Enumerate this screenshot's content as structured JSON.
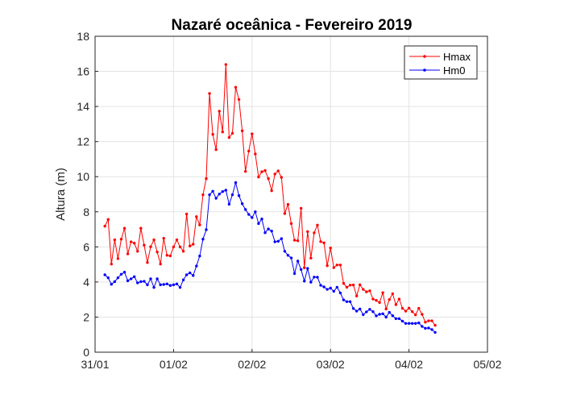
{
  "chart_data": {
    "type": "line",
    "title": "Nazaré oceânica - Fevereiro  2019",
    "xlabel": "",
    "ylabel": "Altura (m)",
    "ylim": [
      0,
      18
    ],
    "yticks": [
      "0",
      "2",
      "4",
      "6",
      "8",
      "10",
      "12",
      "14",
      "16",
      "18"
    ],
    "xticks": [
      "31/01",
      "01/02",
      "02/02",
      "03/02",
      "04/02",
      "05/02"
    ],
    "grid": true,
    "legend": "top-right",
    "x_start": "31/01 03:00",
    "x_step_hours": 1,
    "series": [
      {
        "name": "Hmax",
        "color": "#ff0000",
        "values": [
          7.18,
          7.56,
          5.02,
          6.4,
          5.33,
          6.44,
          7.06,
          5.6,
          6.29,
          6.21,
          5.75,
          7.06,
          6.1,
          5.11,
          6.01,
          6.4,
          5.71,
          5.02,
          6.49,
          5.52,
          5.49,
          6.0,
          6.4,
          6.0,
          5.75,
          7.87,
          6.05,
          6.15,
          7.72,
          7.25,
          8.97,
          9.89,
          14.74,
          12.41,
          11.54,
          13.73,
          12.55,
          16.39,
          12.23,
          12.47,
          15.09,
          14.4,
          12.61,
          10.3,
          11.46,
          12.44,
          11.29,
          9.98,
          10.28,
          10.35,
          9.89,
          9.2,
          10.15,
          10.33,
          9.96,
          7.9,
          8.42,
          7.33,
          6.38,
          6.35,
          8.2,
          4.81,
          6.87,
          5.36,
          6.8,
          7.24,
          6.3,
          6.23,
          4.93,
          5.94,
          4.82,
          4.97,
          4.97,
          3.92,
          3.7,
          3.82,
          3.83,
          3.2,
          3.84,
          3.58,
          3.44,
          3.5,
          3.03,
          2.95,
          2.83,
          3.39,
          2.46,
          3.0,
          3.33,
          2.71,
          3.03,
          2.5,
          2.34,
          2.51,
          2.31,
          2.13,
          2.5,
          2.16,
          1.71,
          1.79,
          1.79,
          1.53
        ]
      },
      {
        "name": "Hm0",
        "color": "#0000ff",
        "values": [
          4.41,
          4.24,
          3.87,
          4.02,
          4.24,
          4.44,
          4.56,
          4.07,
          4.18,
          4.3,
          3.95,
          4.02,
          4.04,
          3.84,
          4.18,
          3.69,
          4.18,
          3.84,
          3.86,
          3.89,
          3.8,
          3.84,
          3.89,
          3.69,
          4.12,
          4.41,
          4.52,
          4.37,
          4.91,
          5.48,
          6.44,
          6.98,
          8.97,
          9.17,
          8.77,
          9.01,
          9.15,
          9.23,
          8.43,
          8.97,
          9.66,
          8.92,
          8.46,
          8.13,
          7.85,
          7.67,
          8.0,
          7.33,
          7.59,
          6.81,
          7.02,
          6.9,
          6.29,
          6.32,
          6.47,
          5.75,
          5.52,
          5.37,
          4.48,
          5.19,
          4.71,
          4.05,
          4.77,
          3.99,
          4.28,
          4.27,
          3.81,
          3.72,
          3.58,
          3.65,
          3.47,
          3.7,
          3.38,
          2.98,
          2.88,
          2.88,
          2.49,
          2.34,
          2.46,
          2.14,
          2.3,
          2.44,
          2.31,
          2.07,
          2.16,
          2.19,
          2.0,
          2.27,
          2.08,
          1.91,
          1.91,
          1.77,
          1.64,
          1.64,
          1.64,
          1.64,
          1.67,
          1.47,
          1.36,
          1.38,
          1.29,
          1.13
        ]
      }
    ]
  }
}
